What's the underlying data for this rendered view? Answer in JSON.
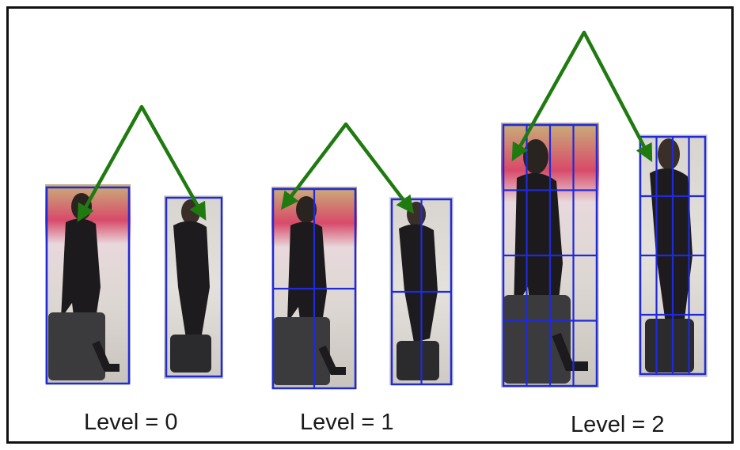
{
  "labels": {
    "level_0": "Level = 0",
    "level_1": "Level = 1",
    "level_2": "Level = 2"
  },
  "colors": {
    "grid_line": "#1f2bd8",
    "arrow": "#1f7a10",
    "frame": "#111111",
    "background": "#ffffff"
  },
  "pairs": [
    {
      "level": 0,
      "grid": [
        1,
        1
      ]
    },
    {
      "level": 1,
      "grid": [
        2,
        2
      ]
    },
    {
      "level": 2,
      "grid": [
        4,
        4
      ]
    }
  ]
}
